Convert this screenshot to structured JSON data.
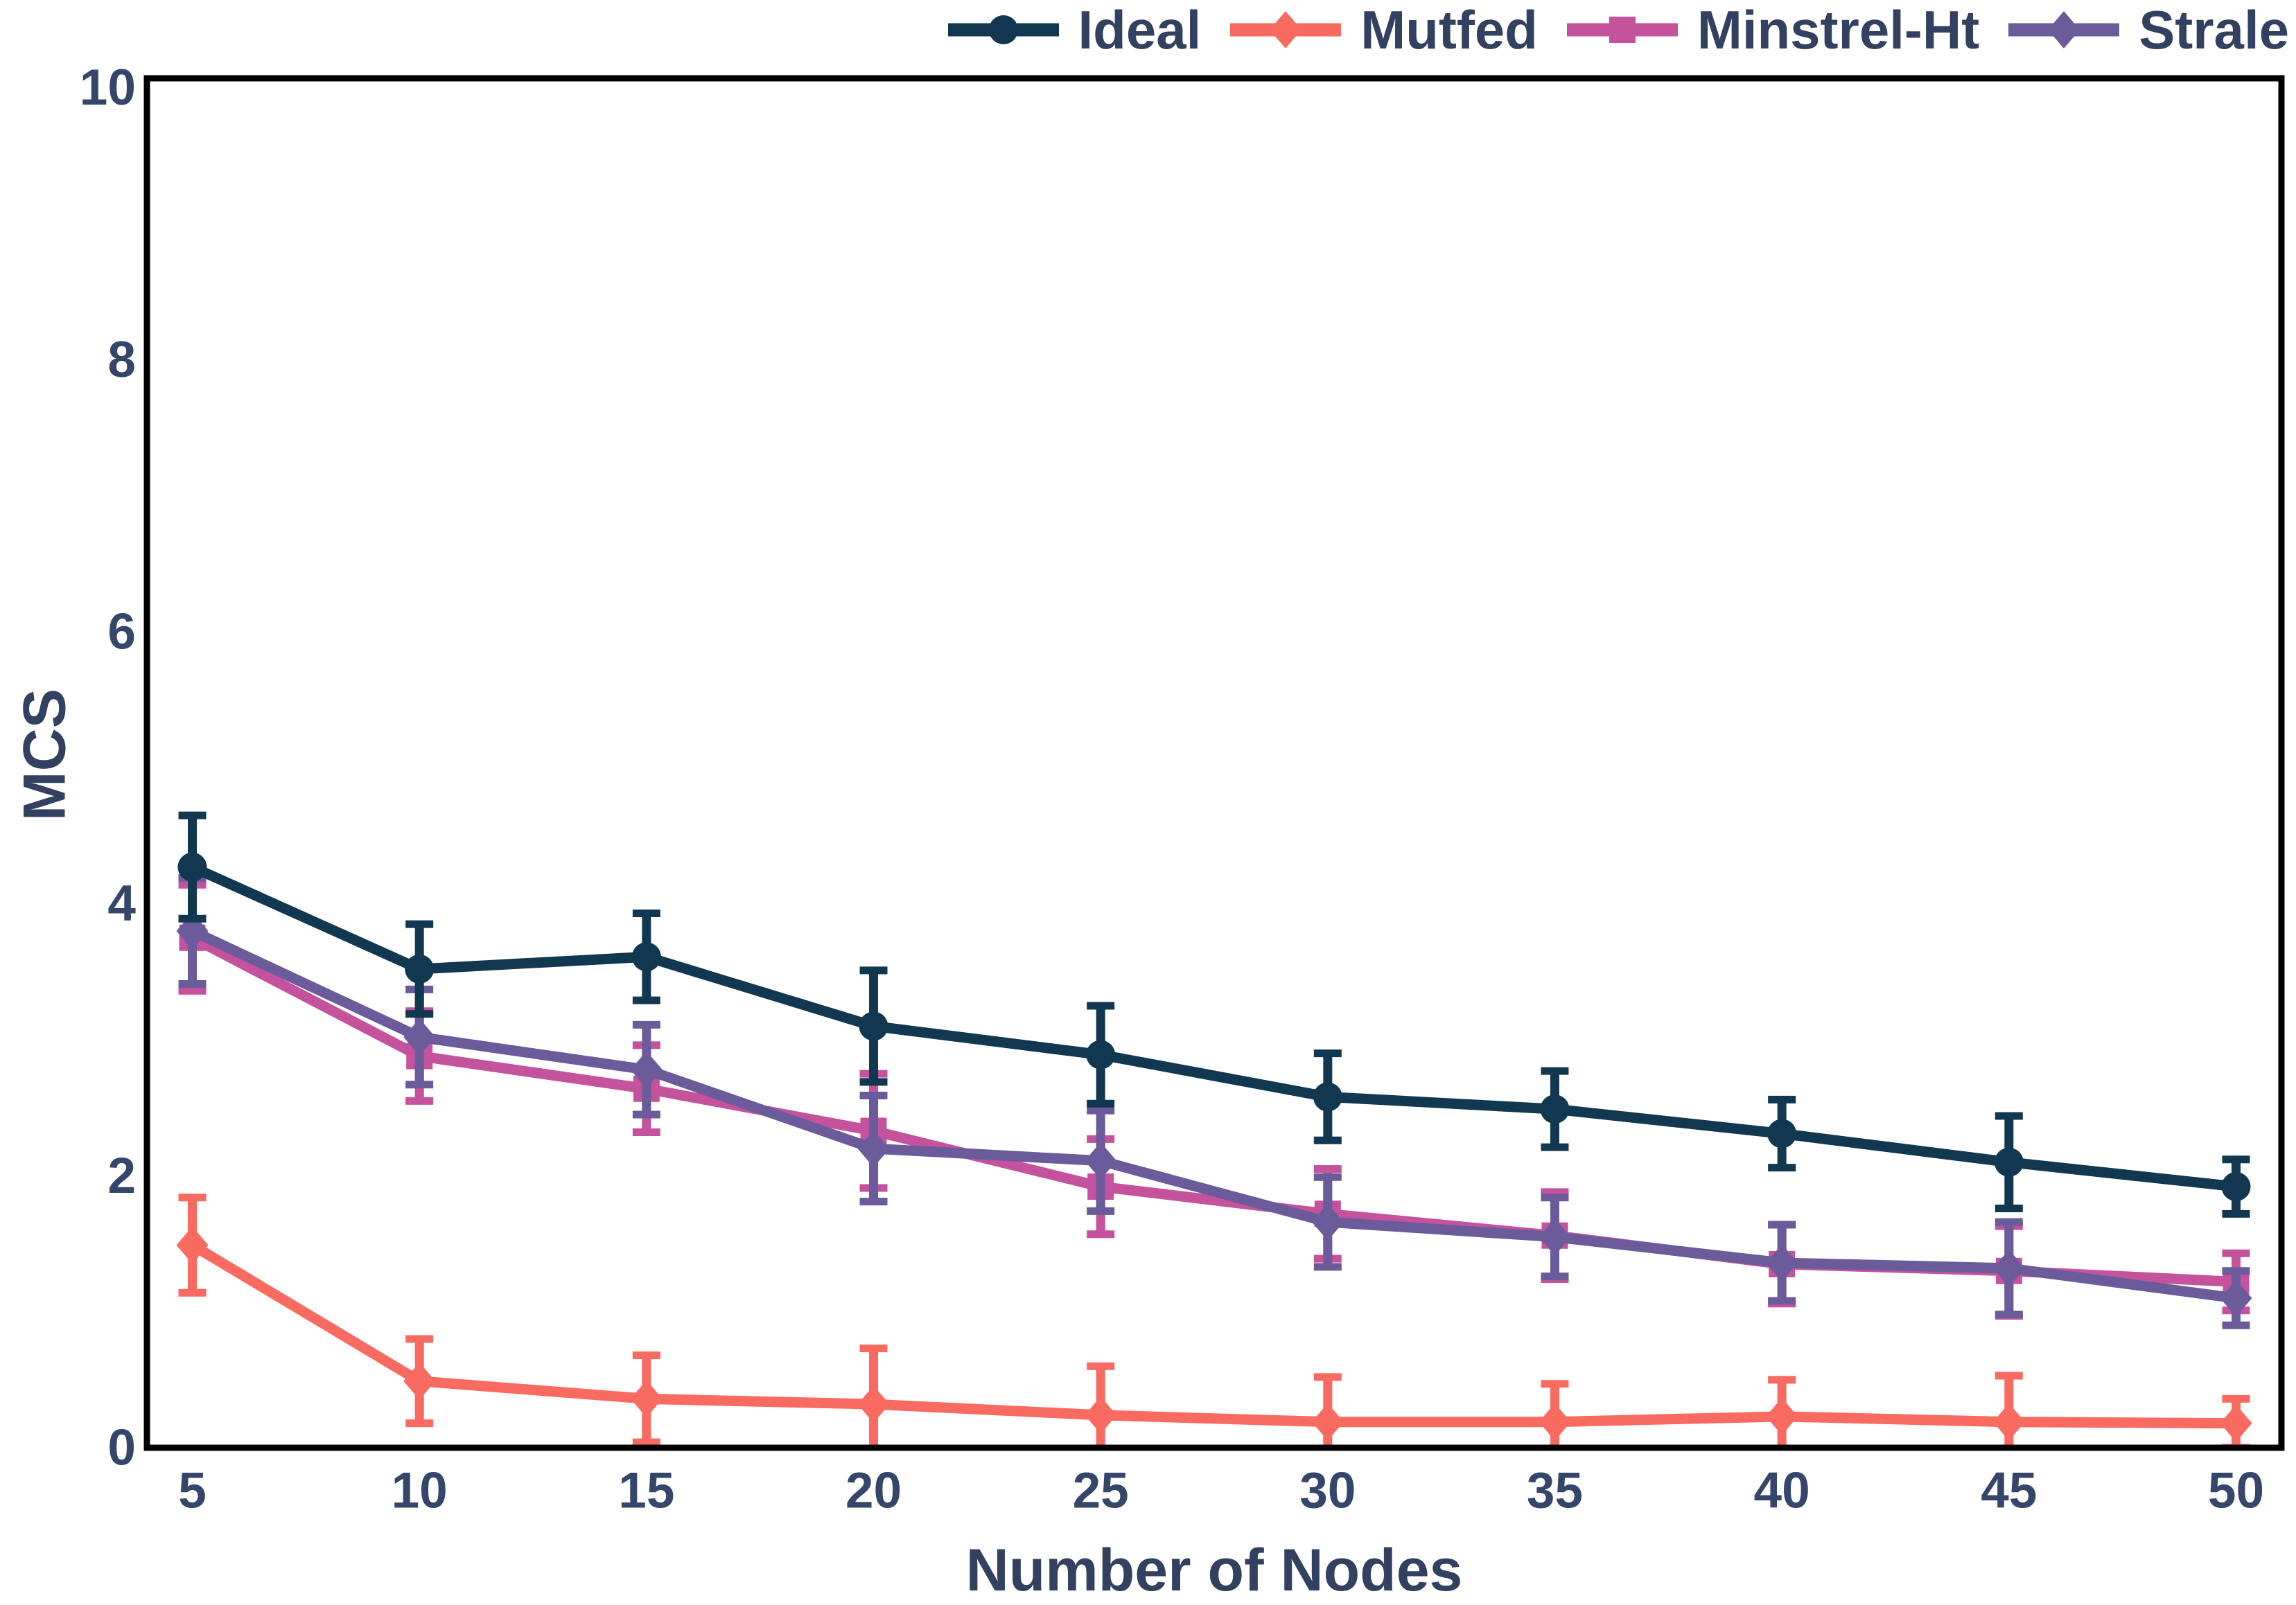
{
  "chart_data": {
    "type": "line",
    "title": "",
    "xlabel": "Number of Nodes",
    "ylabel": "MCS",
    "x": [
      5,
      10,
      15,
      20,
      25,
      30,
      35,
      40,
      45,
      50
    ],
    "xlim": [
      4,
      51
    ],
    "ylim": [
      0,
      10.07
    ],
    "xticks": [
      5,
      10,
      15,
      20,
      25,
      30,
      35,
      40,
      45,
      50
    ],
    "yticks": [
      0,
      2,
      4,
      6,
      8,
      10
    ],
    "grid": false,
    "legend_position": "top-right",
    "error_bars": true,
    "axis_color": "#000000",
    "tick_color": "#35466b",
    "label_color": "#31415f",
    "series": [
      {
        "name": "Ideal",
        "color": "#113850",
        "marker": "circle",
        "values": [
          4.27,
          3.52,
          3.61,
          3.1,
          2.89,
          2.58,
          2.49,
          2.31,
          2.1,
          1.92
        ],
        "errors": [
          0.38,
          0.33,
          0.32,
          0.41,
          0.36,
          0.32,
          0.28,
          0.25,
          0.34,
          0.2
        ]
      },
      {
        "name": "Mutfed",
        "color": "#f96a60",
        "marker": "diamond",
        "values": [
          1.49,
          0.49,
          0.36,
          0.32,
          0.24,
          0.19,
          0.19,
          0.23,
          0.19,
          0.18
        ],
        "errors": [
          0.35,
          0.31,
          0.32,
          0.41,
          0.36,
          0.33,
          0.28,
          0.27,
          0.34,
          0.18
        ]
      },
      {
        "name": "Minstrel-Ht",
        "color": "#c4529c",
        "marker": "square",
        "values": [
          3.75,
          2.88,
          2.64,
          2.33,
          1.92,
          1.72,
          1.56,
          1.35,
          1.3,
          1.22
        ],
        "errors": [
          0.39,
          0.33,
          0.32,
          0.42,
          0.35,
          0.33,
          0.32,
          0.29,
          0.33,
          0.21
        ]
      },
      {
        "name": "Strale",
        "color": "#6b5b9b",
        "marker": "diamond",
        "values": [
          3.8,
          3.02,
          2.78,
          2.2,
          2.11,
          1.66,
          1.55,
          1.36,
          1.32,
          1.1
        ],
        "errors": [
          0.39,
          0.35,
          0.33,
          0.39,
          0.37,
          0.33,
          0.29,
          0.28,
          0.34,
          0.2
        ]
      }
    ]
  }
}
